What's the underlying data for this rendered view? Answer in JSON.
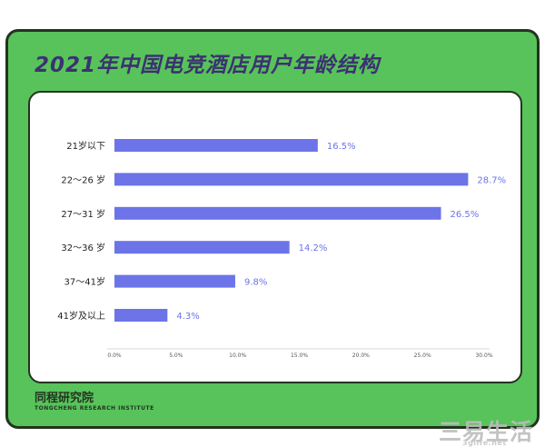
{
  "title": "2021年中国电竞酒店用户年龄结构",
  "brand": {
    "name": "同程研究院",
    "sub": "TONGCHENG RESEARCH INSTITUTE"
  },
  "watermark": {
    "text": "三易生活",
    "url": "3glife.net"
  },
  "colors": {
    "bar": "#6c74e8",
    "value_text": "#6c74e8",
    "card": "#58c35b",
    "title": "#3b3270"
  },
  "chart_data": {
    "type": "bar",
    "orientation": "horizontal",
    "categories": [
      "21岁以下",
      "22～26 岁",
      "27～31 岁",
      "32～36 岁",
      "37～41岁",
      "41岁及以上"
    ],
    "values": [
      16.5,
      28.7,
      26.5,
      14.2,
      9.8,
      4.3
    ],
    "value_labels": [
      "16.5%",
      "28.7%",
      "26.5%",
      "14.2%",
      "9.8%",
      "4.3%"
    ],
    "xlim": [
      0,
      30
    ],
    "xticks": [
      0,
      5,
      10,
      15,
      20,
      25,
      30
    ],
    "xtick_labels": [
      "0.0%",
      "5.0%",
      "10.0%",
      "15.0%",
      "20.0%",
      "25.0%",
      "30.0%"
    ],
    "title": "2021年中国电竞酒店用户年龄结构",
    "xlabel": "",
    "ylabel": "",
    "grid": false,
    "legend": "none"
  }
}
